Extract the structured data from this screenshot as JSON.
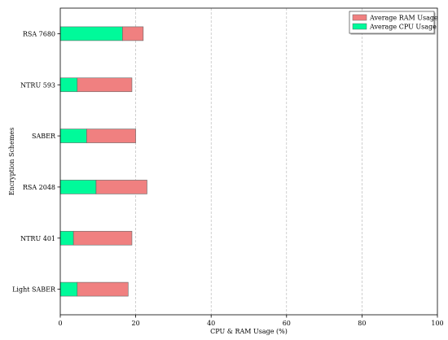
{
  "chart_data": {
    "type": "bar",
    "orientation": "horizontal",
    "stacked": true,
    "categories": [
      "RSA 7680",
      "NTRU 593",
      "SABER",
      "RSA 2048",
      "NTRU 401",
      "Light SABER"
    ],
    "series": [
      {
        "name": "Average CPU Usage",
        "values": [
          16.5,
          4.5,
          7,
          9.5,
          3.5,
          4.5
        ],
        "color": "#00fa9a"
      },
      {
        "name": "Average RAM Usage",
        "values": [
          5.5,
          14.5,
          13,
          13.5,
          15.5,
          13.5
        ],
        "color": "#f08080"
      }
    ],
    "legend_order": [
      "Average RAM Usage",
      "Average CPU Usage"
    ],
    "legend_position": "top-right",
    "xlabel": "CPU & RAM Usage (%)",
    "ylabel": "Encryption Schemes",
    "xlim": [
      0,
      100
    ],
    "xticks": [
      0,
      20,
      40,
      60,
      80,
      100
    ],
    "grid": "x-dashed"
  }
}
